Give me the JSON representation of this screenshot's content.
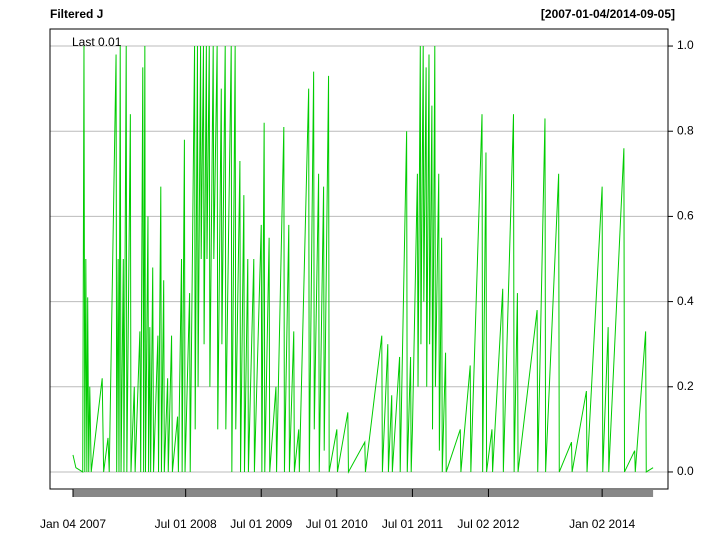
{
  "chart_data": {
    "type": "line",
    "title": "Filtered J",
    "date_range": "[2007-01-04/2014-09-05]",
    "legend": "Last 0.01",
    "grid": true,
    "xlim": [
      "2006-09-15",
      "2014-11-16"
    ],
    "ylim": [
      -0.04,
      1.04
    ],
    "yticks": [
      {
        "value": 0,
        "label": "0.0"
      },
      {
        "value": 0.2,
        "label": "0.2"
      },
      {
        "value": 0.4,
        "label": "0.4"
      },
      {
        "value": 0.6,
        "label": "0.6"
      },
      {
        "value": 0.8,
        "label": "0.8"
      },
      {
        "value": 1,
        "label": "1.0"
      }
    ],
    "xticks": [
      {
        "value": "2007-01-04",
        "label": "Jan 04 2007"
      },
      {
        "value": "2008-07-01",
        "label": "Jul 01 2008"
      },
      {
        "value": "2009-07-01",
        "label": "Jul 01 2009"
      },
      {
        "value": "2010-07-01",
        "label": "Jul 01 2010"
      },
      {
        "value": "2011-07-01",
        "label": "Jul 01 2011"
      },
      {
        "value": "2012-07-02",
        "label": "Jul 02 2012"
      },
      {
        "value": "2014-01-02",
        "label": "Jan 02 2014"
      }
    ],
    "x": [
      "2007-01-04",
      "2007-01-18",
      "2007-02-20",
      "2007-02-26",
      "2007-03-02",
      "2007-03-07",
      "2007-03-12",
      "2007-03-16",
      "2007-03-21",
      "2007-03-26",
      "2007-04-02",
      "2007-05-25",
      "2007-06-01",
      "2007-06-22",
      "2007-06-28",
      "2007-07-31",
      "2007-08-03",
      "2007-08-10",
      "2007-08-14",
      "2007-08-20",
      "2007-08-24",
      "2007-09-04",
      "2007-09-07",
      "2007-09-18",
      "2007-09-21",
      "2007-10-08",
      "2007-10-11",
      "2007-10-27",
      "2007-10-31",
      "2007-11-23",
      "2007-11-27",
      "2007-12-07",
      "2007-12-11",
      "2007-12-17",
      "2007-12-20",
      "2008-01-01",
      "2008-01-04",
      "2008-01-10",
      "2008-01-14",
      "2008-01-24",
      "2008-01-28",
      "2008-02-18",
      "2008-02-21",
      "2008-03-03",
      "2008-03-06",
      "2008-03-17",
      "2008-03-20",
      "2008-04-05",
      "2008-04-08",
      "2008-04-24",
      "2008-04-28",
      "2008-05-23",
      "2008-05-27",
      "2008-06-11",
      "2008-06-14",
      "2008-06-25",
      "2008-06-28",
      "2008-07-20",
      "2008-07-23",
      "2008-08-13",
      "2008-08-16",
      "2008-08-27",
      "2008-08-30",
      "2008-09-11",
      "2008-09-14",
      "2008-09-25",
      "2008-09-28",
      "2008-10-09",
      "2008-10-12",
      "2008-10-23",
      "2008-10-26",
      "2008-11-11",
      "2008-11-14",
      "2008-11-30",
      "2008-12-03",
      "2008-12-20",
      "2008-12-23",
      "2009-01-08",
      "2009-01-11",
      "2009-02-06",
      "2009-02-09",
      "2009-02-25",
      "2009-02-28",
      "2009-03-20",
      "2009-03-23",
      "2009-04-08",
      "2009-04-11",
      "2009-04-27",
      "2009-04-30",
      "2009-05-26",
      "2009-05-29",
      "2009-07-01",
      "2009-07-04",
      "2009-07-15",
      "2009-07-18",
      "2009-08-08",
      "2009-08-11",
      "2009-09-10",
      "2009-09-13",
      "2009-10-18",
      "2009-10-21",
      "2009-11-11",
      "2009-11-14",
      "2009-12-05",
      "2009-12-08",
      "2009-12-29",
      "2010-01-01",
      "2010-02-15",
      "2010-02-18",
      "2010-03-11",
      "2010-03-14",
      "2010-04-04",
      "2010-04-07",
      "2010-04-28",
      "2010-05-01",
      "2010-05-22",
      "2010-05-25",
      "2010-07-01",
      "2010-07-04",
      "2010-08-23",
      "2010-08-26",
      "2010-11-13",
      "2010-11-16",
      "2011-02-03",
      "2011-02-06",
      "2011-03-04",
      "2011-03-07",
      "2011-03-23",
      "2011-03-26",
      "2011-04-30",
      "2011-05-03",
      "2011-06-03",
      "2011-06-06",
      "2011-06-22",
      "2011-06-25",
      "2011-07-01",
      "2011-07-25",
      "2011-07-28",
      "2011-08-08",
      "2011-08-11",
      "2011-08-22",
      "2011-08-25",
      "2011-09-05",
      "2011-09-08",
      "2011-09-19",
      "2011-09-22",
      "2011-10-03",
      "2011-10-06",
      "2011-10-17",
      "2011-10-20",
      "2011-11-05",
      "2011-11-08",
      "2011-11-19",
      "2011-11-22",
      "2011-12-08",
      "2011-12-11",
      "2012-02-17",
      "2012-02-20",
      "2012-04-05",
      "2012-04-08",
      "2012-06-01",
      "2012-06-04",
      "2012-06-20",
      "2012-06-23",
      "2012-07-19",
      "2012-07-22",
      "2012-09-09",
      "2012-09-12",
      "2012-10-31",
      "2012-11-03",
      "2012-11-19",
      "2012-11-22",
      "2013-02-22",
      "2013-02-25",
      "2013-04-01",
      "2013-04-04",
      "2013-06-06",
      "2013-06-09",
      "2013-08-07",
      "2013-08-10",
      "2013-10-18",
      "2013-10-21",
      "2014-01-02",
      "2014-01-05",
      "2014-01-31",
      "2014-02-03",
      "2014-04-17",
      "2014-04-20",
      "2014-06-08",
      "2014-06-11",
      "2014-07-31",
      "2014-08-03",
      "2014-09-05"
    ],
    "series": [
      {
        "name": "Filtered J",
        "color": "#00cc00",
        "values": [
          0.04,
          0.01,
          0,
          1.0,
          0,
          0.5,
          0,
          0.41,
          0,
          0.2,
          0,
          0.22,
          0,
          0.08,
          0,
          0.98,
          0,
          0.5,
          0,
          1.0,
          0,
          0.5,
          0,
          1.0,
          0,
          0.84,
          0,
          0.2,
          0,
          0.33,
          0,
          0.95,
          0,
          1.0,
          0,
          0.6,
          0,
          0.34,
          0,
          0.48,
          0,
          0.32,
          0,
          0.67,
          0,
          0.45,
          0,
          0.22,
          0,
          0.32,
          0,
          0.13,
          0,
          0.5,
          0,
          0.78,
          0,
          0.42,
          0,
          1.0,
          0.1,
          1.0,
          0.2,
          1.0,
          0.5,
          1.0,
          0.3,
          1.0,
          0.5,
          1.0,
          0.2,
          1.0,
          0.5,
          1.0,
          0.1,
          0.9,
          0.3,
          1.0,
          0.1,
          1.0,
          0,
          1.0,
          0.1,
          0.73,
          0,
          0.65,
          0,
          0.5,
          0,
          0.5,
          0,
          0.58,
          0,
          0.82,
          0,
          0.55,
          0,
          0.2,
          0,
          0.81,
          0,
          0.58,
          0,
          0.33,
          0,
          0.1,
          0,
          0.9,
          0,
          0.94,
          0.1,
          0.7,
          0,
          0.67,
          0.05,
          0.93,
          0,
          0.1,
          0,
          0.14,
          0,
          0.07,
          0,
          0.32,
          0,
          0.3,
          0,
          0.18,
          0,
          0.27,
          0,
          0.8,
          0,
          0.27,
          0,
          0.1,
          0.7,
          0.2,
          1.0,
          0.3,
          1.0,
          0.4,
          0.95,
          0.2,
          0.98,
          0.3,
          0.86,
          0.1,
          1.0,
          0.2,
          0.7,
          0.05,
          0.55,
          0,
          0.28,
          0,
          0.1,
          0,
          0.25,
          0,
          0.84,
          0,
          0.75,
          0,
          0.1,
          0,
          0.43,
          0,
          0.84,
          0,
          0.42,
          0,
          0.38,
          0,
          0.83,
          0,
          0.7,
          0,
          0.07,
          0,
          0.19,
          0,
          0.67,
          0,
          0.34,
          0,
          0.76,
          0,
          0.05,
          0,
          0.33,
          0,
          0.01
        ]
      }
    ]
  }
}
